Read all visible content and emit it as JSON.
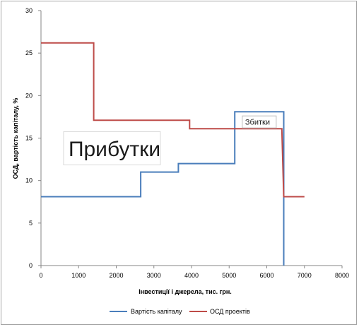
{
  "chart_data": {
    "type": "line",
    "step": true,
    "xlabel": "Інвестиції і джерела, тис. грн.",
    "ylabel": "ОСД, вартість капіталу, %",
    "xlim": [
      0,
      8000
    ],
    "ylim": [
      0,
      30
    ],
    "xticks": [
      "0",
      "1000",
      "2000",
      "3000",
      "4000",
      "5000",
      "6000",
      "7000",
      "8000"
    ],
    "yticks": [
      "0",
      "5",
      "10",
      "15",
      "20",
      "25",
      "30"
    ],
    "grid": false,
    "legend_position": "bottom",
    "series": [
      {
        "name": "Вартість капіталу",
        "color": "#4a7ebb",
        "points": [
          [
            0,
            8.1
          ],
          [
            2650,
            8.1
          ],
          [
            2650,
            11.0
          ],
          [
            3650,
            11.0
          ],
          [
            3650,
            12.0
          ],
          [
            5150,
            12.0
          ],
          [
            5150,
            18.1
          ],
          [
            6450,
            18.1
          ],
          [
            6450,
            0
          ]
        ]
      },
      {
        "name": "ОСД проектів",
        "color": "#be4b48",
        "points": [
          [
            0,
            26.2
          ],
          [
            1400,
            26.2
          ],
          [
            1400,
            17.1
          ],
          [
            3950,
            17.1
          ],
          [
            3950,
            16.1
          ],
          [
            6400,
            16.1
          ],
          [
            6450,
            8.1
          ],
          [
            7000,
            8.1
          ]
        ]
      }
    ],
    "annotations": [
      {
        "text": "Прибутки",
        "x": 600,
        "y": 13.8,
        "size": "large"
      },
      {
        "text": "Збитки",
        "x": 5350,
        "y": 16.9,
        "size": "small"
      }
    ]
  }
}
